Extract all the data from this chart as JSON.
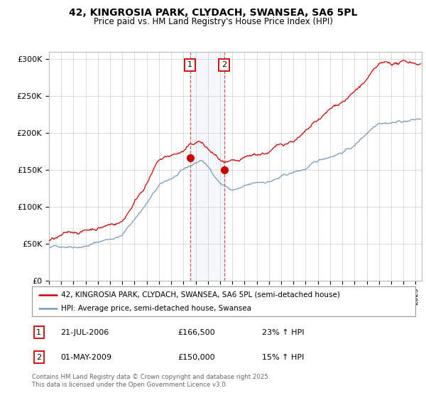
{
  "title1": "42, KINGROSIA PARK, CLYDACH, SWANSEA, SA6 5PL",
  "title2": "Price paid vs. HM Land Registry's House Price Index (HPI)",
  "ylabel_ticks": [
    "£0",
    "£50K",
    "£100K",
    "£150K",
    "£200K",
    "£250K",
    "£300K"
  ],
  "ytick_values": [
    0,
    50000,
    100000,
    150000,
    200000,
    250000,
    300000
  ],
  "ylim": [
    0,
    310000
  ],
  "xlim_start": 1995.0,
  "xlim_end": 2025.5,
  "legend_line1": "42, KINGROSIA PARK, CLYDACH, SWANSEA, SA6 5PL (semi-detached house)",
  "legend_line2": "HPI: Average price, semi-detached house, Swansea",
  "red_color": "#cc0000",
  "blue_color": "#7799bb",
  "annotation1_year": 2006.55,
  "annotation2_year": 2009.33,
  "annotation1_date": "21-JUL-2006",
  "annotation1_price": "£166,500",
  "annotation1_hpi": "23% ↑ HPI",
  "annotation2_date": "01-MAY-2009",
  "annotation2_price": "£150,000",
  "annotation2_hpi": "15% ↑ HPI",
  "footer": "Contains HM Land Registry data © Crown copyright and database right 2025.\nThis data is licensed under the Open Government Licence v3.0.",
  "grid_color": "#cccccc",
  "bg_color": "#ffffff"
}
